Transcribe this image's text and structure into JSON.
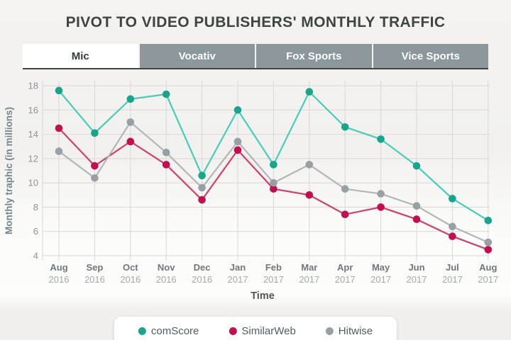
{
  "title": "PIVOT TO VIDEO PUBLISHERS' MONTHLY TRAFFIC",
  "tabs": [
    {
      "label": "Mic",
      "active": true
    },
    {
      "label": "Vocativ",
      "active": false
    },
    {
      "label": "Fox Sports",
      "active": false
    },
    {
      "label": "Vice Sports",
      "active": false
    }
  ],
  "chart_data": {
    "type": "line",
    "title": "PIVOT TO VIDEO PUBLISHERS' MONTHLY TRAFFIC",
    "xlabel": "Time",
    "ylabel": "Monthly traphic (in millions)",
    "ylim": [
      4,
      18
    ],
    "yticks": [
      18,
      16,
      14,
      12,
      10,
      8,
      6,
      4
    ],
    "grid": "on",
    "legend_position": "bottom",
    "x_categories": [
      {
        "month": "Aug",
        "year": "2016"
      },
      {
        "month": "Sep",
        "year": "2016"
      },
      {
        "month": "Oct",
        "year": "2016"
      },
      {
        "month": "Nov",
        "year": "2016"
      },
      {
        "month": "Dec",
        "year": "2016"
      },
      {
        "month": "Jan",
        "year": "2017"
      },
      {
        "month": "Feb",
        "year": "2017"
      },
      {
        "month": "Mar",
        "year": "2017"
      },
      {
        "month": "Apr",
        "year": "2017"
      },
      {
        "month": "May",
        "year": "2017"
      },
      {
        "month": "Jun",
        "year": "2017"
      },
      {
        "month": "Jul",
        "year": "2017"
      },
      {
        "month": "Aug",
        "year": "2017"
      }
    ],
    "series": [
      {
        "name": "comScore",
        "dot_color": "#17a68c",
        "line_color": "#43cfb6",
        "values": [
          17.6,
          14.1,
          16.9,
          17.3,
          10.6,
          16.0,
          11.5,
          17.5,
          14.6,
          13.6,
          11.4,
          8.7,
          6.9
        ]
      },
      {
        "name": "SimilarWeb",
        "dot_color": "#c40e51",
        "line_color": "#d23f6b",
        "values": [
          14.5,
          11.4,
          13.4,
          11.5,
          8.6,
          12.7,
          9.5,
          9.0,
          7.4,
          8.0,
          7.0,
          5.6,
          4.5
        ]
      },
      {
        "name": "Hitwise",
        "dot_color": "#97a1a4",
        "line_color": "#b0b7b9",
        "values": [
          12.6,
          10.4,
          15.0,
          12.5,
          9.6,
          13.4,
          10.0,
          11.5,
          9.5,
          9.1,
          8.1,
          6.4,
          5.1
        ]
      }
    ]
  },
  "colors": {
    "page_bg": "#f2f1ef",
    "title_text": "#3d4642",
    "tab_inactive_bg": "#8b979a",
    "tab_active_bg": "#ffffff",
    "tab_underline": "#3e4744",
    "grid_line": "#d9d8d6",
    "y_tick_text": "#8d9497",
    "month_text": "#6e787c",
    "year_text": "#a3a9ab",
    "axis_title_text": "#4d5751",
    "y_axis_title_text": "#76848b"
  }
}
